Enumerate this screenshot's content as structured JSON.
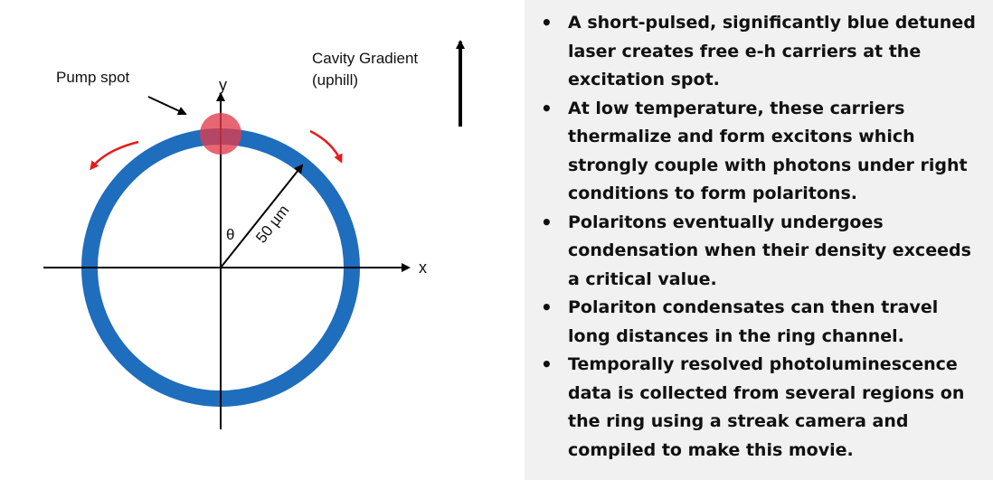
{
  "diagram": {
    "pump_label": "Pump spot",
    "gradient_label_line1": "Cavity Gradient",
    "gradient_label_line2": "(uphill)",
    "x_axis_label": "x",
    "y_axis_label": "y",
    "theta_label": "θ",
    "radius_label": "50 µm",
    "colors": {
      "ring": "#1f6dbd",
      "pump_spot": "#e23b4b",
      "flow_arrows": "#e51c1c",
      "axes": "#000000"
    }
  },
  "bullets": [
    "A short-pulsed, significantly blue detuned laser creates free e-h carriers at the excitation spot.",
    "At low temperature, these carriers thermalize and form excitons which strongly couple with photons under right conditions to form polaritons.",
    "Polaritons eventually undergoes condensation when their density exceeds a critical value.",
    "Polariton condensates can then travel long distances in the ring channel.",
    "Temporally resolved photoluminescence data is collected from several regions on the ring using a streak camera and compiled to make this movie."
  ]
}
